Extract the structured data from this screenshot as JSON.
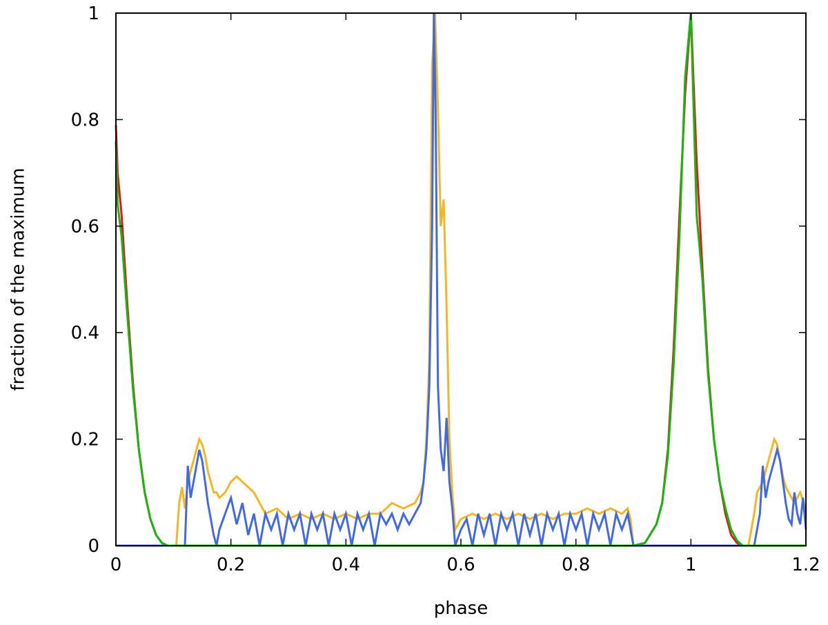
{
  "chart_data": {
    "type": "line",
    "title": "",
    "xlabel": "phase",
    "ylabel": "fraction of the maximum",
    "xlim": [
      0,
      1.2
    ],
    "ylim": [
      0,
      1
    ],
    "xticks": [
      0,
      0.2,
      0.4,
      0.6,
      0.8,
      1,
      1.2
    ],
    "xtick_labels": [
      "0",
      "0.2",
      "0.4",
      "0.6",
      "0.8",
      "1",
      "1.2"
    ],
    "yticks": [
      0,
      0.2,
      0.4,
      0.6,
      0.8,
      1
    ],
    "ytick_labels": [
      "0",
      "0.2",
      "0.4",
      "0.6",
      "0.8",
      "1"
    ],
    "grid": false,
    "legend": "none",
    "series": [
      {
        "color": "#e8141c",
        "x": [
          0,
          0.003,
          0.01,
          0.02,
          0.03,
          0.04,
          0.05,
          0.06,
          0.07,
          0.08,
          0.09,
          0.1,
          0.9,
          0.92,
          0.94,
          0.95,
          0.96,
          0.97,
          0.98,
          0.99,
          1.0,
          1.01,
          1.02,
          1.03,
          1.04,
          1.05,
          1.06,
          1.07,
          1.08,
          1.09,
          1.1,
          1.2
        ],
        "y": [
          0.79,
          0.7,
          0.62,
          0.45,
          0.3,
          0.18,
          0.1,
          0.05,
          0.02,
          0.005,
          0,
          0,
          0,
          0.005,
          0.04,
          0.08,
          0.18,
          0.37,
          0.62,
          0.85,
          1.0,
          0.72,
          0.52,
          0.33,
          0.2,
          0.12,
          0.06,
          0.02,
          0.005,
          0,
          0,
          0
        ]
      },
      {
        "color": "#f5b623",
        "x": [
          0,
          0.105,
          0.11,
          0.115,
          0.12,
          0.125,
          0.13,
          0.135,
          0.14,
          0.145,
          0.15,
          0.155,
          0.16,
          0.165,
          0.17,
          0.175,
          0.18,
          0.19,
          0.2,
          0.21,
          0.22,
          0.23,
          0.24,
          0.25,
          0.26,
          0.28,
          0.3,
          0.32,
          0.34,
          0.36,
          0.38,
          0.4,
          0.42,
          0.44,
          0.46,
          0.48,
          0.5,
          0.52,
          0.53,
          0.535,
          0.54,
          0.545,
          0.55,
          0.555,
          0.56,
          0.565,
          0.57,
          0.575,
          0.58,
          0.585,
          0.59,
          0.6,
          0.62,
          0.64,
          0.66,
          0.68,
          0.7,
          0.72,
          0.74,
          0.76,
          0.78,
          0.8,
          0.82,
          0.84,
          0.86,
          0.88,
          0.89,
          0.895,
          0.9,
          1.1,
          1.11,
          1.115,
          1.12,
          1.125,
          1.13,
          1.135,
          1.14,
          1.145,
          1.15,
          1.155,
          1.16,
          1.165,
          1.17,
          1.175,
          1.18,
          1.19,
          1.2
        ],
        "y": [
          0,
          0,
          0.08,
          0.11,
          0.07,
          0.12,
          0.14,
          0.16,
          0.18,
          0.2,
          0.19,
          0.17,
          0.14,
          0.12,
          0.1,
          0.1,
          0.09,
          0.1,
          0.12,
          0.13,
          0.12,
          0.11,
          0.1,
          0.08,
          0.06,
          0.07,
          0.05,
          0.06,
          0.05,
          0.06,
          0.05,
          0.06,
          0.05,
          0.06,
          0.06,
          0.08,
          0.07,
          0.08,
          0.1,
          0.12,
          0.2,
          0.35,
          0.9,
          1.0,
          0.82,
          0.6,
          0.65,
          0.45,
          0.2,
          0.1,
          0.03,
          0.05,
          0.06,
          0.05,
          0.06,
          0.05,
          0.06,
          0.05,
          0.06,
          0.05,
          0.06,
          0.06,
          0.07,
          0.06,
          0.07,
          0.06,
          0.07,
          0.05,
          0,
          0,
          0.06,
          0.1,
          0.11,
          0.12,
          0.14,
          0.16,
          0.18,
          0.2,
          0.19,
          0.16,
          0.13,
          0.11,
          0.1,
          0.09,
          0.08,
          0.1,
          0.07
        ]
      },
      {
        "color": "#4169e1",
        "x": [
          0,
          0.12,
          0.125,
          0.13,
          0.135,
          0.14,
          0.145,
          0.15,
          0.155,
          0.16,
          0.165,
          0.17,
          0.175,
          0.18,
          0.19,
          0.2,
          0.21,
          0.22,
          0.23,
          0.24,
          0.25,
          0.26,
          0.27,
          0.28,
          0.29,
          0.3,
          0.31,
          0.32,
          0.33,
          0.34,
          0.35,
          0.36,
          0.37,
          0.38,
          0.39,
          0.4,
          0.41,
          0.42,
          0.43,
          0.44,
          0.45,
          0.46,
          0.47,
          0.48,
          0.49,
          0.5,
          0.51,
          0.52,
          0.53,
          0.535,
          0.54,
          0.545,
          0.55,
          0.553,
          0.556,
          0.56,
          0.565,
          0.57,
          0.575,
          0.58,
          0.585,
          0.59,
          0.6,
          0.61,
          0.62,
          0.63,
          0.64,
          0.65,
          0.66,
          0.67,
          0.68,
          0.69,
          0.7,
          0.71,
          0.72,
          0.73,
          0.74,
          0.75,
          0.76,
          0.77,
          0.78,
          0.79,
          0.8,
          0.81,
          0.82,
          0.83,
          0.84,
          0.85,
          0.86,
          0.87,
          0.88,
          0.89,
          0.9,
          1.11,
          1.12,
          1.125,
          1.13,
          1.135,
          1.14,
          1.145,
          1.15,
          1.155,
          1.16,
          1.165,
          1.17,
          1.175,
          1.18,
          1.185,
          1.19,
          1.195,
          1.2
        ],
        "y": [
          0,
          0,
          0.15,
          0.09,
          0.12,
          0.15,
          0.18,
          0.16,
          0.12,
          0.08,
          0.05,
          0.02,
          0.0,
          0.03,
          0.06,
          0.09,
          0.04,
          0.08,
          0.02,
          0.06,
          0.0,
          0.06,
          0.03,
          0.06,
          0.0,
          0.06,
          0.03,
          0.06,
          0.0,
          0.06,
          0.03,
          0.06,
          0.0,
          0.06,
          0.03,
          0.06,
          0.0,
          0.06,
          0.03,
          0.06,
          0.0,
          0.06,
          0.04,
          0.06,
          0.03,
          0.06,
          0.04,
          0.06,
          0.08,
          0.12,
          0.18,
          0.3,
          0.6,
          1.0,
          0.82,
          0.3,
          0.18,
          0.14,
          0.24,
          0.12,
          0.07,
          0.0,
          0.03,
          0.05,
          0.0,
          0.06,
          0.02,
          0.06,
          0.0,
          0.06,
          0.03,
          0.06,
          0.0,
          0.06,
          0.02,
          0.06,
          0.0,
          0.06,
          0.03,
          0.06,
          0.0,
          0.06,
          0.03,
          0.06,
          0.0,
          0.06,
          0.03,
          0.06,
          0.0,
          0.06,
          0.03,
          0.06,
          0.0,
          0.0,
          0.06,
          0.15,
          0.09,
          0.12,
          0.14,
          0.16,
          0.18,
          0.16,
          0.12,
          0.08,
          0.05,
          0.04,
          0.1,
          0.06,
          0.04,
          0.09,
          0.03
        ]
      },
      {
        "color": "#17b50e",
        "x": [
          0,
          0.003,
          0.01,
          0.02,
          0.03,
          0.04,
          0.05,
          0.06,
          0.07,
          0.08,
          0.09,
          0.1,
          0.9,
          0.92,
          0.94,
          0.95,
          0.96,
          0.97,
          0.98,
          0.99,
          1.0,
          1.01,
          1.02,
          1.03,
          1.04,
          1.05,
          1.06,
          1.07,
          1.08,
          1.09,
          1.1,
          1.2
        ],
        "y": [
          0.76,
          0.64,
          0.58,
          0.43,
          0.29,
          0.18,
          0.1,
          0.05,
          0.02,
          0.005,
          0,
          0,
          0,
          0.005,
          0.04,
          0.08,
          0.17,
          0.34,
          0.58,
          0.88,
          1.0,
          0.62,
          0.5,
          0.32,
          0.2,
          0.12,
          0.07,
          0.03,
          0.01,
          0,
          0,
          0
        ]
      }
    ]
  }
}
